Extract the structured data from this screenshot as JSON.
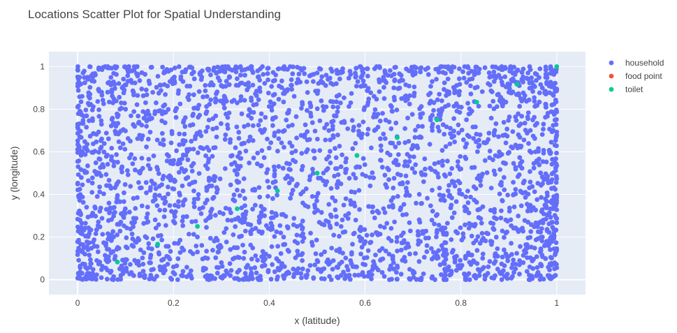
{
  "chart_data": {
    "type": "scatter",
    "title": "Locations Scatter Plot for Spatial Understanding",
    "xlabel": "x (latitude)",
    "ylabel": "y (longitude)",
    "xlim": [
      -0.06,
      1.06
    ],
    "ylim": [
      -0.07,
      1.07
    ],
    "x_ticks": [
      0,
      0.2,
      0.4,
      0.6,
      0.8,
      1
    ],
    "y_ticks": [
      0,
      0.2,
      0.4,
      0.6,
      0.8,
      1
    ],
    "grid": true,
    "legend_position": "top-right",
    "background_color": "#e5ecf6",
    "series": [
      {
        "name": "household",
        "color": "#636efa",
        "approx_count": 3000,
        "points": [
          [
            0.02,
            0.95
          ],
          [
            0.05,
            0.88
          ],
          [
            0.08,
            0.72
          ],
          [
            0.11,
            0.65
          ],
          [
            0.13,
            0.5
          ],
          [
            0.03,
            0.41
          ],
          [
            0.06,
            0.33
          ],
          [
            0.09,
            0.27
          ],
          [
            0.12,
            0.18
          ],
          [
            0.04,
            0.09
          ],
          [
            0.07,
            0.04
          ],
          [
            0.14,
            0.02
          ],
          [
            0.01,
            0.6
          ],
          [
            0.1,
            0.8
          ],
          [
            0.15,
            0.92
          ],
          [
            0.18,
            0.97
          ],
          [
            0.22,
            0.93
          ],
          [
            0.26,
            0.98
          ],
          [
            0.3,
            0.91
          ],
          [
            0.34,
            0.96
          ],
          [
            0.38,
            0.9
          ],
          [
            0.42,
            0.99
          ],
          [
            0.46,
            0.94
          ],
          [
            0.5,
            0.97
          ],
          [
            0.54,
            0.92
          ],
          [
            0.58,
            0.95
          ],
          [
            0.62,
            0.99
          ],
          [
            0.66,
            0.9
          ],
          [
            0.7,
            0.96
          ],
          [
            0.74,
            0.93
          ],
          [
            0.78,
            0.98
          ],
          [
            0.82,
            0.91
          ],
          [
            0.86,
            0.95
          ],
          [
            0.9,
            0.88
          ],
          [
            0.94,
            0.97
          ],
          [
            0.97,
            0.9
          ],
          [
            0.99,
            0.82
          ],
          [
            0.95,
            0.75
          ],
          [
            0.92,
            0.68
          ],
          [
            0.88,
            0.6
          ],
          [
            0.96,
            0.55
          ],
          [
            0.98,
            0.47
          ],
          [
            0.91,
            0.4
          ],
          [
            0.87,
            0.33
          ],
          [
            0.94,
            0.27
          ],
          [
            0.97,
            0.2
          ],
          [
            0.89,
            0.14
          ],
          [
            0.93,
            0.08
          ],
          [
            0.96,
            0.03
          ],
          [
            0.85,
            0.02
          ],
          [
            0.8,
            0.06
          ],
          [
            0.75,
            0.1
          ],
          [
            0.7,
            0.04
          ],
          [
            0.65,
            0.12
          ],
          [
            0.6,
            0.07
          ],
          [
            0.55,
            0.02
          ],
          [
            0.5,
            0.09
          ],
          [
            0.45,
            0.05
          ],
          [
            0.4,
            0.11
          ],
          [
            0.35,
            0.03
          ],
          [
            0.3,
            0.08
          ],
          [
            0.25,
            0.13
          ],
          [
            0.2,
            0.06
          ],
          [
            0.17,
            0.12
          ],
          [
            0.22,
            0.35
          ],
          [
            0.28,
            0.44
          ],
          [
            0.32,
            0.58
          ],
          [
            0.36,
            0.67
          ],
          [
            0.44,
            0.72
          ],
          [
            0.48,
            0.61
          ],
          [
            0.52,
            0.46
          ],
          [
            0.56,
            0.38
          ],
          [
            0.62,
            0.29
          ],
          [
            0.66,
            0.55
          ],
          [
            0.7,
            0.63
          ],
          [
            0.74,
            0.42
          ],
          [
            0.78,
            0.35
          ],
          [
            0.8,
            0.52
          ],
          [
            0.84,
            0.68
          ],
          [
            0.24,
            0.77
          ],
          [
            0.27,
            0.86
          ],
          [
            0.31,
            0.24
          ],
          [
            0.39,
            0.3
          ],
          [
            0.43,
            0.2
          ],
          [
            0.47,
            0.36
          ],
          [
            0.53,
            0.74
          ],
          [
            0.57,
            0.83
          ],
          [
            0.61,
            0.48
          ],
          [
            0.68,
            0.22
          ],
          [
            0.72,
            0.78
          ],
          [
            0.76,
            0.16
          ],
          [
            0.83,
            0.26
          ],
          [
            0.41,
            0.53
          ],
          [
            0.37,
            0.42
          ],
          [
            0.58,
            0.64
          ],
          [
            0.64,
            0.85
          ],
          [
            0.19,
            0.58
          ],
          [
            0.23,
            0.48
          ],
          [
            0.29,
            0.67
          ],
          [
            0.33,
            0.15
          ]
        ]
      },
      {
        "name": "food point",
        "color": "#ef553b",
        "points": []
      },
      {
        "name": "toilet",
        "color": "#00cc96",
        "points": [
          [
            0.083,
            0.083
          ],
          [
            0.167,
            0.167
          ],
          [
            0.25,
            0.25
          ],
          [
            0.333,
            0.333
          ],
          [
            0.417,
            0.417
          ],
          [
            0.5,
            0.5
          ],
          [
            0.583,
            0.583
          ],
          [
            0.667,
            0.667
          ],
          [
            0.75,
            0.75
          ],
          [
            0.833,
            0.833
          ],
          [
            0.917,
            0.917
          ],
          [
            1.0,
            1.0
          ]
        ]
      }
    ]
  }
}
